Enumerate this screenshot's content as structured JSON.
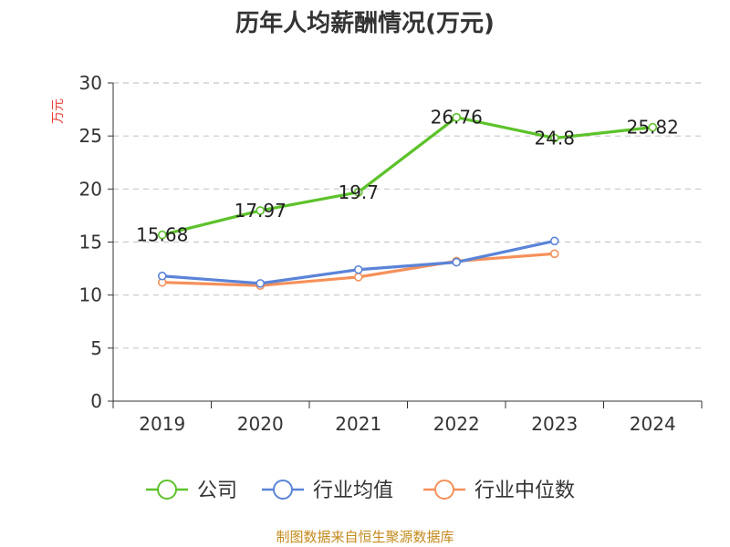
{
  "chart_data": {
    "type": "line",
    "title": "历年人均薪酬情况(万元)",
    "ylabel": "万元",
    "xlabel": "",
    "categories": [
      "2019",
      "2020",
      "2021",
      "2022",
      "2023",
      "2024"
    ],
    "ylim": [
      0,
      30
    ],
    "yticks": [
      0,
      5,
      10,
      15,
      20,
      25,
      30
    ],
    "grid": "horizontal-dashed",
    "legend_position": "bottom",
    "series": [
      {
        "name": "公司",
        "color": "#5cc22a",
        "values": [
          15.68,
          17.97,
          19.7,
          26.76,
          24.8,
          25.82
        ],
        "labels": [
          "15.68",
          "17.97",
          "19.7",
          "26.76",
          "24.8",
          "25.82"
        ]
      },
      {
        "name": "行业均值",
        "color": "#5b84d8",
        "values": [
          11.8,
          11.1,
          12.4,
          13.1,
          15.1,
          null
        ]
      },
      {
        "name": "行业中位数",
        "color": "#f5905a",
        "values": [
          11.2,
          10.9,
          11.7,
          13.2,
          13.9,
          null
        ]
      }
    ]
  },
  "source": "制图数据来自恒生聚源数据库"
}
